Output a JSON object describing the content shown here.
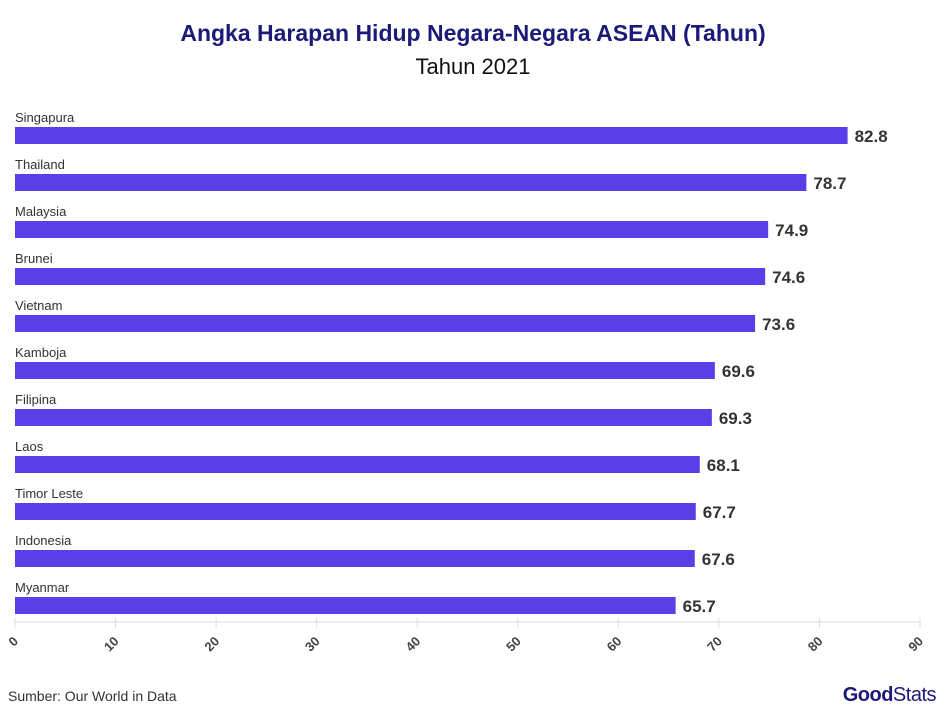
{
  "chart_data": {
    "type": "bar",
    "orientation": "horizontal",
    "title": "Angka Harapan Hidup Negara-Negara ASEAN (Tahun)",
    "subtitle": "Tahun 2021",
    "categories": [
      "Singapura",
      "Thailand",
      "Malaysia",
      "Brunei",
      "Vietnam",
      "Kamboja",
      "Filipina",
      "Laos",
      "Timor Leste",
      "Indonesia",
      "Myanmar"
    ],
    "values": [
      82.8,
      78.7,
      74.9,
      74.6,
      73.6,
      69.6,
      69.3,
      68.1,
      67.7,
      67.6,
      65.7
    ],
    "xlim": [
      0,
      90
    ],
    "xticks": [
      0,
      10,
      20,
      30,
      40,
      50,
      60,
      70,
      80,
      90
    ],
    "grid": false,
    "bar_color": "#5a3fe6"
  },
  "source": "Sumber: Our World in Data",
  "logo": {
    "bold": "Good",
    "light": "Stats"
  }
}
